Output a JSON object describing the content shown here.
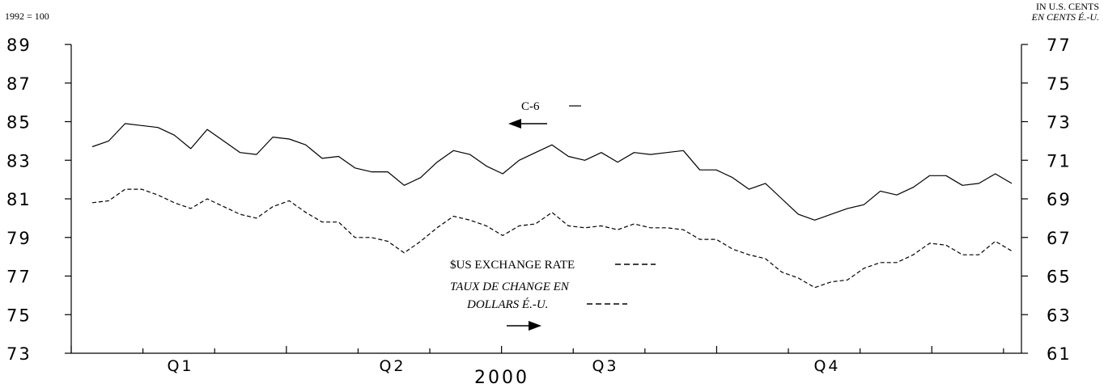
{
  "chart_data": {
    "type": "line",
    "left_axis_note": "1992 = 100",
    "right_axis_note_en": "IN U.S. CENTS",
    "right_axis_note_fr": "EN CENTS É.-U.",
    "xlabel": "2000",
    "quarters": [
      "Q1",
      "Q2",
      "Q3",
      "Q4"
    ],
    "left_axis": {
      "min": 73,
      "max": 89,
      "ticks": [
        "73",
        "75",
        "77",
        "79",
        "81",
        "83",
        "85",
        "87",
        "89"
      ]
    },
    "right_axis": {
      "min": 61,
      "max": 77,
      "ticks": [
        "61",
        "63",
        "65",
        "67",
        "69",
        "71",
        "73",
        "75",
        "77"
      ]
    },
    "grid": false,
    "series": [
      {
        "name": "C-6",
        "axis": "left",
        "style": "solid",
        "values": [
          83.7,
          84.0,
          84.9,
          84.8,
          84.7,
          84.3,
          83.6,
          84.6,
          84.0,
          83.4,
          83.3,
          84.2,
          84.1,
          83.8,
          83.1,
          83.2,
          82.6,
          82.4,
          82.4,
          81.7,
          82.1,
          82.9,
          83.5,
          83.3,
          82.7,
          82.3,
          83.0,
          83.4,
          83.8,
          83.2,
          83.0,
          83.4,
          82.9,
          83.4,
          83.3,
          83.4,
          83.5,
          82.5,
          82.5,
          82.1,
          81.5,
          81.8,
          81.0,
          80.2,
          79.9,
          80.2,
          80.5,
          80.7,
          81.4,
          81.2,
          81.6,
          82.2,
          82.2,
          81.7,
          81.8,
          82.3,
          81.8
        ]
      },
      {
        "name": "$US EXCHANGE RATE",
        "name_fr": "TAUX DE CHANGE EN DOLLARS É.-U.",
        "axis": "right",
        "style": "dashed",
        "values": [
          68.8,
          68.9,
          69.5,
          69.5,
          69.2,
          68.8,
          68.5,
          69.0,
          68.6,
          68.2,
          68.0,
          68.6,
          68.9,
          68.3,
          67.8,
          67.8,
          67.0,
          67.0,
          66.8,
          66.2,
          66.8,
          67.5,
          68.1,
          67.9,
          67.6,
          67.1,
          67.6,
          67.7,
          68.3,
          67.6,
          67.5,
          67.6,
          67.4,
          67.7,
          67.5,
          67.5,
          67.4,
          66.9,
          66.9,
          66.4,
          66.1,
          65.9,
          65.2,
          64.9,
          64.4,
          64.7,
          64.8,
          65.4,
          65.7,
          65.7,
          66.1,
          66.7,
          66.6,
          66.1,
          66.1,
          66.8,
          66.3
        ]
      }
    ],
    "annotations": {
      "c6_label": "C-6",
      "us_label_en": "$US EXCHANGE RATE",
      "us_label_fr_line1": "TAUX DE CHANGE EN",
      "us_label_fr_line2": "DOLLARS É.-U."
    }
  }
}
